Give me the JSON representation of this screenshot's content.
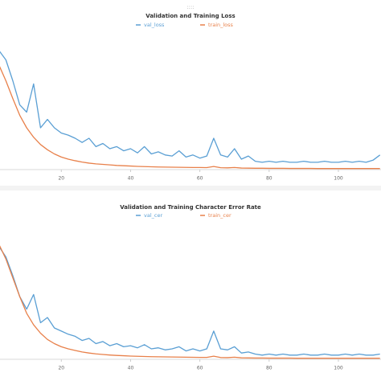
{
  "chart_data": [
    {
      "type": "line",
      "title": "Validation and Training Loss",
      "x": [
        2,
        4,
        6,
        8,
        10,
        12,
        14,
        16,
        18,
        20,
        22,
        24,
        26,
        28,
        30,
        32,
        34,
        36,
        38,
        40,
        42,
        44,
        46,
        48,
        50,
        52,
        54,
        56,
        58,
        60,
        62,
        64,
        66,
        68,
        70,
        72,
        74,
        76,
        78,
        80,
        82,
        84,
        86,
        88,
        90,
        92,
        94,
        96,
        98,
        100,
        102,
        104,
        106,
        108,
        110,
        112
      ],
      "series": [
        {
          "name": "val_loss",
          "color": "#5a9fd4",
          "values": [
            1.14,
            1.05,
            0.85,
            0.62,
            0.55,
            0.82,
            0.4,
            0.48,
            0.4,
            0.35,
            0.33,
            0.3,
            0.26,
            0.3,
            0.22,
            0.25,
            0.2,
            0.22,
            0.18,
            0.2,
            0.16,
            0.22,
            0.15,
            0.17,
            0.14,
            0.13,
            0.18,
            0.12,
            0.14,
            0.11,
            0.13,
            0.3,
            0.14,
            0.12,
            0.2,
            0.1,
            0.13,
            0.08,
            0.07,
            0.08,
            0.07,
            0.08,
            0.07,
            0.07,
            0.08,
            0.07,
            0.07,
            0.08,
            0.07,
            0.07,
            0.08,
            0.07,
            0.08,
            0.07,
            0.09,
            0.14
          ]
        },
        {
          "name": "train_loss",
          "color": "#e8804a",
          "values": [
            1.0,
            0.85,
            0.68,
            0.52,
            0.4,
            0.31,
            0.24,
            0.19,
            0.15,
            0.12,
            0.1,
            0.085,
            0.072,
            0.062,
            0.055,
            0.05,
            0.045,
            0.04,
            0.037,
            0.034,
            0.031,
            0.029,
            0.027,
            0.025,
            0.024,
            0.023,
            0.022,
            0.021,
            0.02,
            0.02,
            0.019,
            0.03,
            0.018,
            0.017,
            0.02,
            0.015,
            0.014,
            0.013,
            0.013,
            0.012,
            0.012,
            0.012,
            0.011,
            0.011,
            0.011,
            0.011,
            0.01,
            0.01,
            0.01,
            0.01,
            0.01,
            0.01,
            0.01,
            0.01,
            0.01,
            0.01
          ]
        }
      ],
      "xlim": [
        2.3,
        112.3
      ],
      "xticks": [
        20,
        40,
        60,
        80,
        100
      ],
      "ylim": [
        0,
        1.2
      ]
    },
    {
      "type": "line",
      "title": "Validation and Training Character Error Rate",
      "x": [
        2,
        4,
        6,
        8,
        10,
        12,
        14,
        16,
        18,
        20,
        22,
        24,
        26,
        28,
        30,
        32,
        34,
        36,
        38,
        40,
        42,
        44,
        46,
        48,
        50,
        52,
        54,
        56,
        58,
        60,
        62,
        64,
        66,
        68,
        70,
        72,
        74,
        76,
        78,
        80,
        82,
        84,
        86,
        88,
        90,
        92,
        94,
        96,
        98,
        100,
        102,
        104,
        106,
        108,
        110,
        112
      ],
      "series": [
        {
          "name": "val_cer",
          "color": "#5a9fd4",
          "values": [
            1.08,
            0.98,
            0.8,
            0.6,
            0.48,
            0.62,
            0.35,
            0.4,
            0.3,
            0.27,
            0.24,
            0.22,
            0.18,
            0.2,
            0.15,
            0.17,
            0.13,
            0.15,
            0.12,
            0.13,
            0.11,
            0.14,
            0.1,
            0.11,
            0.09,
            0.1,
            0.12,
            0.08,
            0.1,
            0.08,
            0.1,
            0.27,
            0.1,
            0.09,
            0.12,
            0.06,
            0.07,
            0.05,
            0.04,
            0.05,
            0.04,
            0.05,
            0.04,
            0.04,
            0.05,
            0.04,
            0.04,
            0.05,
            0.04,
            0.04,
            0.05,
            0.04,
            0.05,
            0.04,
            0.04,
            0.05
          ]
        },
        {
          "name": "train_cer",
          "color": "#e8804a",
          "values": [
            1.1,
            0.96,
            0.78,
            0.6,
            0.44,
            0.33,
            0.25,
            0.19,
            0.15,
            0.12,
            0.1,
            0.085,
            0.07,
            0.06,
            0.052,
            0.046,
            0.041,
            0.037,
            0.034,
            0.031,
            0.029,
            0.027,
            0.025,
            0.024,
            0.023,
            0.022,
            0.021,
            0.02,
            0.019,
            0.018,
            0.018,
            0.03,
            0.017,
            0.016,
            0.02,
            0.014,
            0.013,
            0.012,
            0.012,
            0.011,
            0.011,
            0.011,
            0.011,
            0.01,
            0.01,
            0.01,
            0.01,
            0.01,
            0.01,
            0.01,
            0.01,
            0.01,
            0.01,
            0.01,
            0.01,
            0.01
          ]
        }
      ],
      "xlim": [
        2.3,
        112.3
      ],
      "xticks": [
        20,
        40,
        60,
        80,
        100
      ],
      "ylim": [
        0,
        1.2
      ]
    }
  ]
}
